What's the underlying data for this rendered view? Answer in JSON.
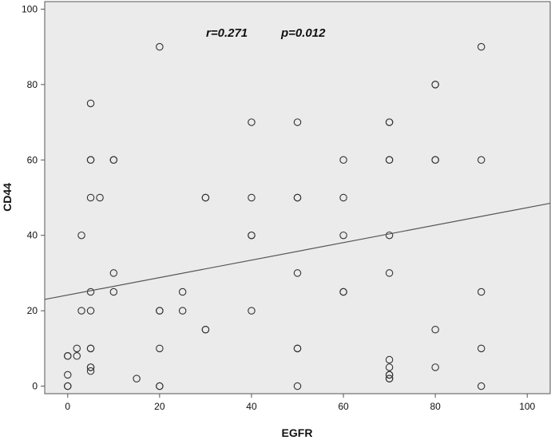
{
  "chart_data": {
    "type": "scatter",
    "title": "",
    "xlabel": "EGFR",
    "ylabel": "CD44",
    "xlim": [
      -5,
      105
    ],
    "ylim": [
      -2,
      102
    ],
    "xticks": [
      0,
      20,
      40,
      60,
      80,
      100
    ],
    "yticks": [
      0,
      20,
      40,
      60,
      80,
      100
    ],
    "grid": false,
    "background_color": "#ebebeb",
    "point_color": "#333333",
    "annotations": {
      "r_text": "r=0.271",
      "p_text": "p=0.012"
    },
    "fit_line": {
      "x": [
        -5,
        105
      ],
      "y": [
        23,
        48.5
      ]
    },
    "points": {
      "x": [
        0,
        0,
        0,
        0,
        0,
        2,
        2,
        3,
        3,
        5,
        5,
        5,
        5,
        5,
        5,
        5,
        5,
        5,
        5,
        5,
        7,
        10,
        10,
        10,
        10,
        15,
        20,
        20,
        20,
        20,
        20,
        20,
        25,
        25,
        30,
        30,
        30,
        30,
        40,
        40,
        40,
        40,
        40,
        50,
        50,
        50,
        50,
        50,
        50,
        50,
        60,
        60,
        60,
        60,
        60,
        70,
        70,
        70,
        70,
        70,
        70,
        70,
        70,
        70,
        70,
        70,
        70,
        80,
        80,
        80,
        80,
        80,
        80,
        90,
        90,
        90,
        90,
        90
      ],
      "y": [
        0,
        0,
        3,
        8,
        8,
        8,
        10,
        40,
        20,
        75,
        60,
        60,
        50,
        25,
        20,
        10,
        10,
        5,
        5,
        4,
        50,
        60,
        60,
        30,
        25,
        2,
        90,
        20,
        20,
        10,
        0,
        0,
        25,
        20,
        50,
        50,
        15,
        15,
        70,
        50,
        40,
        40,
        20,
        70,
        50,
        50,
        30,
        10,
        10,
        0,
        60,
        50,
        40,
        25,
        25,
        70,
        70,
        60,
        60,
        40,
        30,
        7,
        5,
        3,
        3,
        2,
        2,
        80,
        80,
        60,
        60,
        15,
        5,
        90,
        60,
        25,
        10,
        0
      ]
    }
  }
}
